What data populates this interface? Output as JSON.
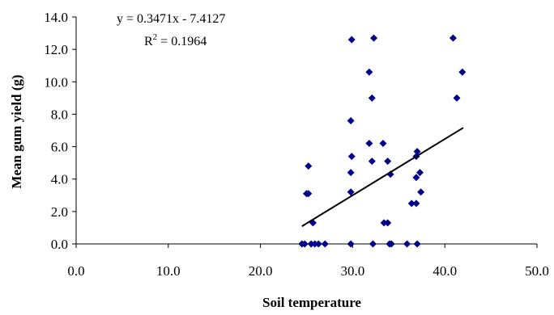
{
  "chart_data": {
    "type": "scatter",
    "title": "",
    "xlabel": "Soil temperature",
    "ylabel": "Mean gum yield (g)",
    "xlim": [
      0,
      50
    ],
    "ylim": [
      0,
      14
    ],
    "x_ticks": [
      0,
      10,
      20,
      30,
      40,
      50
    ],
    "y_ticks": [
      0,
      2,
      4,
      6,
      8,
      10,
      12,
      14
    ],
    "x_tick_labels": [
      "0.0",
      "10.0",
      "20.0",
      "30.0",
      "40.0",
      "50.0"
    ],
    "y_tick_labels": [
      "0.0",
      "2.0",
      "4.0",
      "6.0",
      "8.0",
      "10.0",
      "12.0",
      "14.0"
    ],
    "grid": false,
    "marker": "diamond",
    "marker_color": "#00008B",
    "trendline": {
      "type": "linear",
      "slope": 0.3471,
      "intercept": -7.4127,
      "x_range": [
        24.5,
        42
      ],
      "color": "#000000",
      "equation_text": "y = 0.3471x - 7.4127",
      "r2_label": "R",
      "r2_sup": "2",
      "r2_value_text": " = 0.1964"
    },
    "points": [
      {
        "x": 24.5,
        "y": 0.0
      },
      {
        "x": 24.8,
        "y": 0.0
      },
      {
        "x": 25.2,
        "y": 3.1
      },
      {
        "x": 25.0,
        "y": 3.1
      },
      {
        "x": 25.2,
        "y": 4.8
      },
      {
        "x": 25.7,
        "y": 1.3
      },
      {
        "x": 25.5,
        "y": 0.0
      },
      {
        "x": 25.9,
        "y": 0.0
      },
      {
        "x": 26.3,
        "y": 0.0
      },
      {
        "x": 27.0,
        "y": 0.0
      },
      {
        "x": 29.8,
        "y": 0.0
      },
      {
        "x": 29.8,
        "y": 3.2
      },
      {
        "x": 29.8,
        "y": 4.4
      },
      {
        "x": 29.9,
        "y": 5.4
      },
      {
        "x": 29.8,
        "y": 7.6
      },
      {
        "x": 29.9,
        "y": 12.6
      },
      {
        "x": 31.8,
        "y": 6.2
      },
      {
        "x": 31.8,
        "y": 10.6
      },
      {
        "x": 32.1,
        "y": 9.0
      },
      {
        "x": 32.1,
        "y": 5.1
      },
      {
        "x": 32.3,
        "y": 12.7
      },
      {
        "x": 32.2,
        "y": 0.0
      },
      {
        "x": 33.3,
        "y": 6.2
      },
      {
        "x": 33.4,
        "y": 1.3
      },
      {
        "x": 33.8,
        "y": 1.3
      },
      {
        "x": 33.8,
        "y": 5.1
      },
      {
        "x": 34.1,
        "y": 4.3
      },
      {
        "x": 34.0,
        "y": 0.0
      },
      {
        "x": 34.2,
        "y": 0.0
      },
      {
        "x": 35.9,
        "y": 0.0
      },
      {
        "x": 36.4,
        "y": 2.5
      },
      {
        "x": 36.9,
        "y": 2.5
      },
      {
        "x": 36.9,
        "y": 4.1
      },
      {
        "x": 36.9,
        "y": 5.4
      },
      {
        "x": 37.0,
        "y": 5.7
      },
      {
        "x": 37.3,
        "y": 4.4
      },
      {
        "x": 37.4,
        "y": 3.2
      },
      {
        "x": 37.0,
        "y": 0.0
      },
      {
        "x": 40.9,
        "y": 12.7
      },
      {
        "x": 41.3,
        "y": 9.0
      },
      {
        "x": 41.9,
        "y": 10.6
      }
    ]
  }
}
